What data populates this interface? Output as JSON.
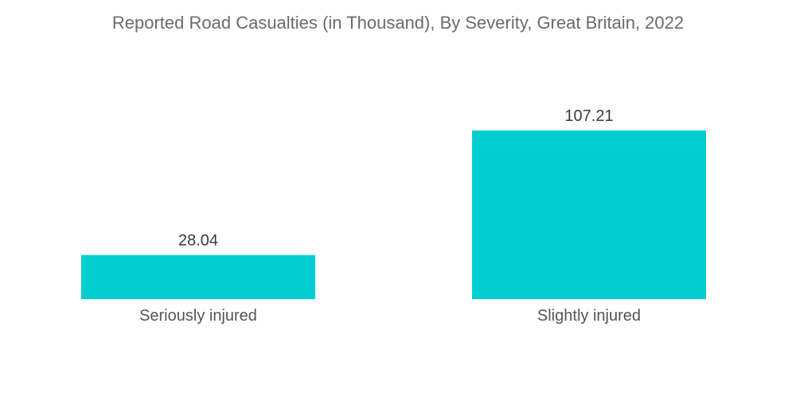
{
  "colors": {
    "bar": "#00CED1",
    "title": "#6b6b6b"
  },
  "chart_data": {
    "type": "bar",
    "title": "Reported Road Casualties (in Thousand), By Severity, Great Britain, 2022",
    "categories": [
      "Seriously injured",
      "Slightly injured"
    ],
    "values": [
      28.04,
      107.21
    ],
    "value_labels": [
      "28.04",
      "107.21"
    ],
    "xlabel": "",
    "ylabel": "",
    "ylim": [
      0,
      107.21
    ],
    "grid": false,
    "legend": "none"
  }
}
